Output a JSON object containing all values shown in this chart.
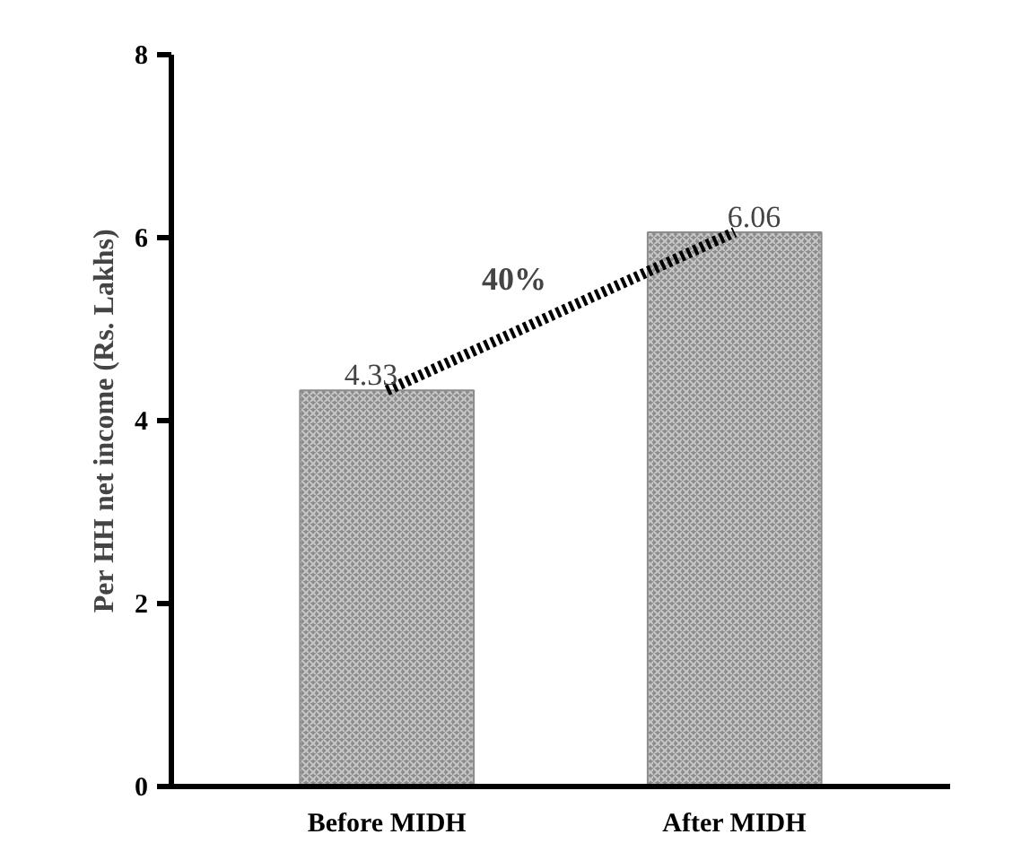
{
  "chart_data": {
    "type": "bar",
    "categories": [
      "Before MIDH",
      "After MIDH"
    ],
    "ylabel": "Per HH net income (Rs. Lakhs)",
    "ylim": [
      0,
      8
    ],
    "yticks": [
      0,
      2,
      4,
      6,
      8
    ],
    "grid": false,
    "series": [
      {
        "color": "#8c8c8c",
        "values": [
          4.33,
          6.06
        ],
        "value_labels": [
          "4.33",
          "6.06"
        ]
      },
      {
        "type": "line",
        "color": "#000000",
        "line_style": "dotted",
        "marker": "none",
        "values": [
          4.33,
          6.06
        ]
      }
    ],
    "annotations": [
      "40%"
    ]
  }
}
